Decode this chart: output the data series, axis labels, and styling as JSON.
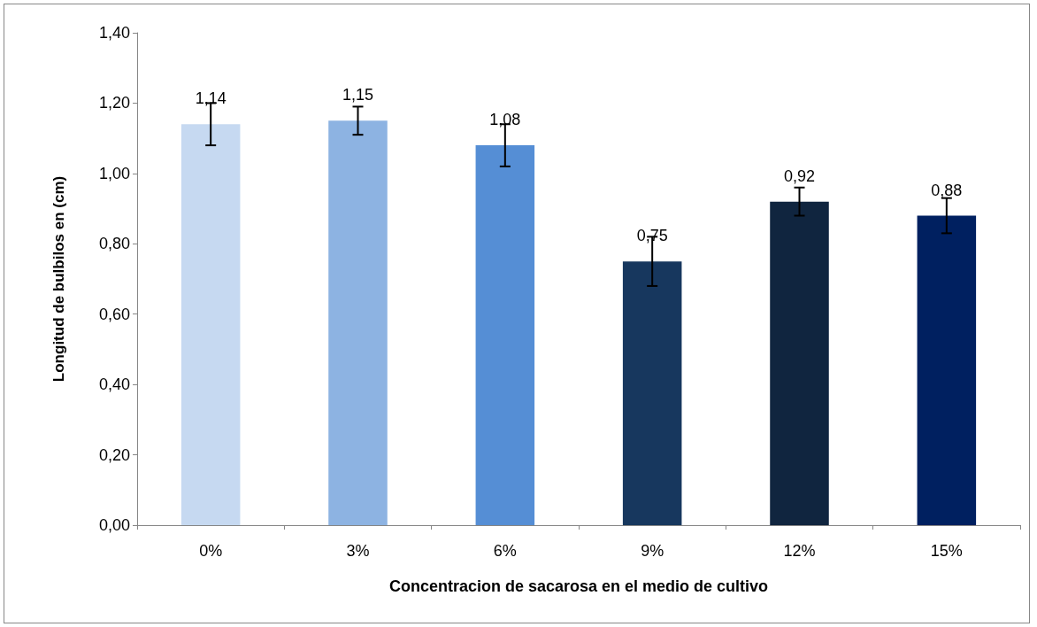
{
  "chart_data": {
    "type": "bar",
    "xlabel": "Concentracion de sacarosa en el medio de cultivo",
    "ylabel": "Longitud de bulbilos en (cm)",
    "categories": [
      "0%",
      "3%",
      "6%",
      "9%",
      "12%",
      "15%"
    ],
    "values": [
      1.14,
      1.15,
      1.08,
      0.75,
      0.92,
      0.88
    ],
    "value_labels": [
      "1,14",
      "1,15",
      "1,08",
      "0,75",
      "0,92",
      "0,88"
    ],
    "errors": [
      0.06,
      0.04,
      0.06,
      0.07,
      0.04,
      0.05
    ],
    "colors": [
      "#c6d9f1",
      "#8db3e2",
      "#558ed5",
      "#17375e",
      "#10253f",
      "#002060"
    ],
    "ylim": [
      0,
      1.4
    ],
    "yticks": [
      {
        "value": 0,
        "label": "0,00"
      },
      {
        "value": 0.2,
        "label": "0,20"
      },
      {
        "value": 0.4,
        "label": "0,40"
      },
      {
        "value": 0.6,
        "label": "0,60"
      },
      {
        "value": 0.8,
        "label": "0,80"
      },
      {
        "value": 1.0,
        "label": "1,00"
      },
      {
        "value": 1.2,
        "label": "1,20"
      },
      {
        "value": 1.4,
        "label": "1,40"
      }
    ],
    "grid": false
  }
}
